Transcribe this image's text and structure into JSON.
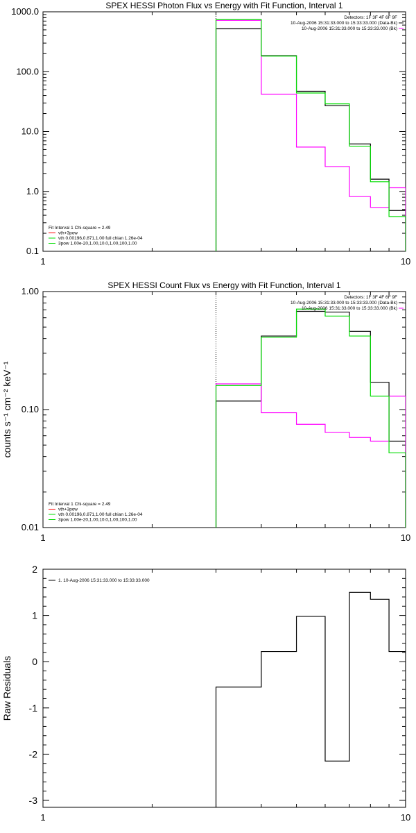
{
  "chart_data": [
    {
      "type": "line",
      "title": "SPEX HESSI Photon Flux vs Energy with Fit Function, Interval 1",
      "xlabel": "",
      "ylabel": "",
      "xscale": "log",
      "yscale": "log",
      "xlim": [
        1,
        10
      ],
      "ylim": [
        0.1,
        1000
      ],
      "x_ticks": [
        "1",
        "10"
      ],
      "y_ticks": [
        "0.1",
        "1.0",
        "10.0",
        "100.0",
        "1000.0"
      ],
      "vline_x": 3,
      "bin_edges": [
        3,
        4,
        5,
        6,
        7,
        8,
        9,
        10
      ],
      "legend_right_placement": "top-right",
      "legend_right": [
        {
          "text": "Detectors: 1F 3F 4F 6F 9F",
          "color": "#000000"
        },
        {
          "text": "10-Aug-2006 15:31:33.000 to 15:33:33.000 (Data-Bk)",
          "color": "#000000"
        },
        {
          "text": "10-Aug-2006 15:31:33.000 to 15:33:33.000 (Bk)",
          "color": "#ff00ff"
        }
      ],
      "legend_left_placement": "bottom-left",
      "legend_left": [
        {
          "text": "Fit Interval 1    Chi-square = 2.49",
          "color": "#000000"
        },
        {
          "text": "vth+3pow",
          "color": "#ff0000"
        },
        {
          "text": "vth 0.00196,0.871,1.00  full chian 1.26e-04",
          "color": "#00dd00"
        },
        {
          "text": "3pow 1.00e-20,1.00,10.0,1.00,100,1.00",
          "color": "#00dd00"
        }
      ],
      "series": [
        {
          "color": "#000000",
          "values": [
            520,
            185,
            47,
            27,
            6.2,
            1.6,
            0.48
          ]
        },
        {
          "color": "#ff00ff",
          "values": [
            720,
            42,
            5.5,
            2.6,
            0.82,
            0.54,
            1.15
          ]
        },
        {
          "color": "#00dd00",
          "values": [
            740,
            182,
            44,
            29,
            5.7,
            1.45,
            0.38
          ]
        }
      ]
    },
    {
      "type": "line",
      "title": "SPEX HESSI Count Flux vs Energy with Fit Function, Interval 1",
      "xlabel": "",
      "ylabel": "counts s⁻¹ cm⁻² keV⁻¹",
      "xscale": "log",
      "yscale": "log",
      "xlim": [
        1,
        10
      ],
      "ylim": [
        0.01,
        1
      ],
      "x_ticks": [
        "1",
        "10"
      ],
      "y_ticks": [
        "0.01",
        "0.10",
        "1.00"
      ],
      "vline_x": 3,
      "bin_edges": [
        3,
        4,
        5,
        6,
        7,
        8,
        9,
        10
      ],
      "legend_right_placement": "top-right",
      "legend_right": [
        {
          "text": "Detectors: 1F 3F 4F 6F 9F",
          "color": "#000000"
        },
        {
          "text": "10-Aug-2006 15:31:33.000 to 15:33:33.000 (Data-Bk)",
          "color": "#000000"
        },
        {
          "text": "10-Aug-2006 15:31:33.000 to 15:33:33.000 (Bk)",
          "color": "#ff00ff"
        }
      ],
      "legend_left_placement": "bottom-left",
      "legend_left": [
        {
          "text": "Fit Interval 1    Chi-square = 2.49",
          "color": "#000000"
        },
        {
          "text": "vth+3pow",
          "color": "#ff0000"
        },
        {
          "text": "vth 0.00196,0.871,1.00  full chian 1.26e-04",
          "color": "#00dd00"
        },
        {
          "text": "3pow 1.00e-20,1.00,10.0,1.00,100,1.00",
          "color": "#00dd00"
        }
      ],
      "series": [
        {
          "color": "#000000",
          "values": [
            0.118,
            0.42,
            0.68,
            0.67,
            0.46,
            0.17,
            0.054
          ]
        },
        {
          "color": "#ff00ff",
          "values": [
            0.165,
            0.094,
            0.075,
            0.064,
            0.058,
            0.054,
            0.13
          ]
        },
        {
          "color": "#00dd00",
          "values": [
            0.16,
            0.41,
            0.71,
            0.62,
            0.42,
            0.13,
            0.043
          ]
        }
      ]
    },
    {
      "type": "line",
      "title": "",
      "xlabel": "",
      "ylabel": "Raw Residuals",
      "xscale": "log",
      "yscale": "linear",
      "xlim": [
        1,
        10
      ],
      "ylim": [
        -3.15,
        2
      ],
      "x_ticks": [
        "1",
        "10"
      ],
      "y_ticks": [
        "-3",
        "-2",
        "-1",
        "0",
        "1",
        "2"
      ],
      "bin_edges": [
        3,
        4,
        5,
        6,
        7,
        8,
        9,
        10
      ],
      "legend_left_placement": "top-left",
      "legend_left": [
        {
          "text": "1. 10-Aug-2006 15:31:33.000 to 15:33:33.000",
          "color": "#000000"
        }
      ],
      "series": [
        {
          "color": "#000000",
          "values": [
            -0.55,
            0.22,
            0.98,
            -2.15,
            1.5,
            1.35,
            0.22
          ]
        }
      ]
    }
  ]
}
